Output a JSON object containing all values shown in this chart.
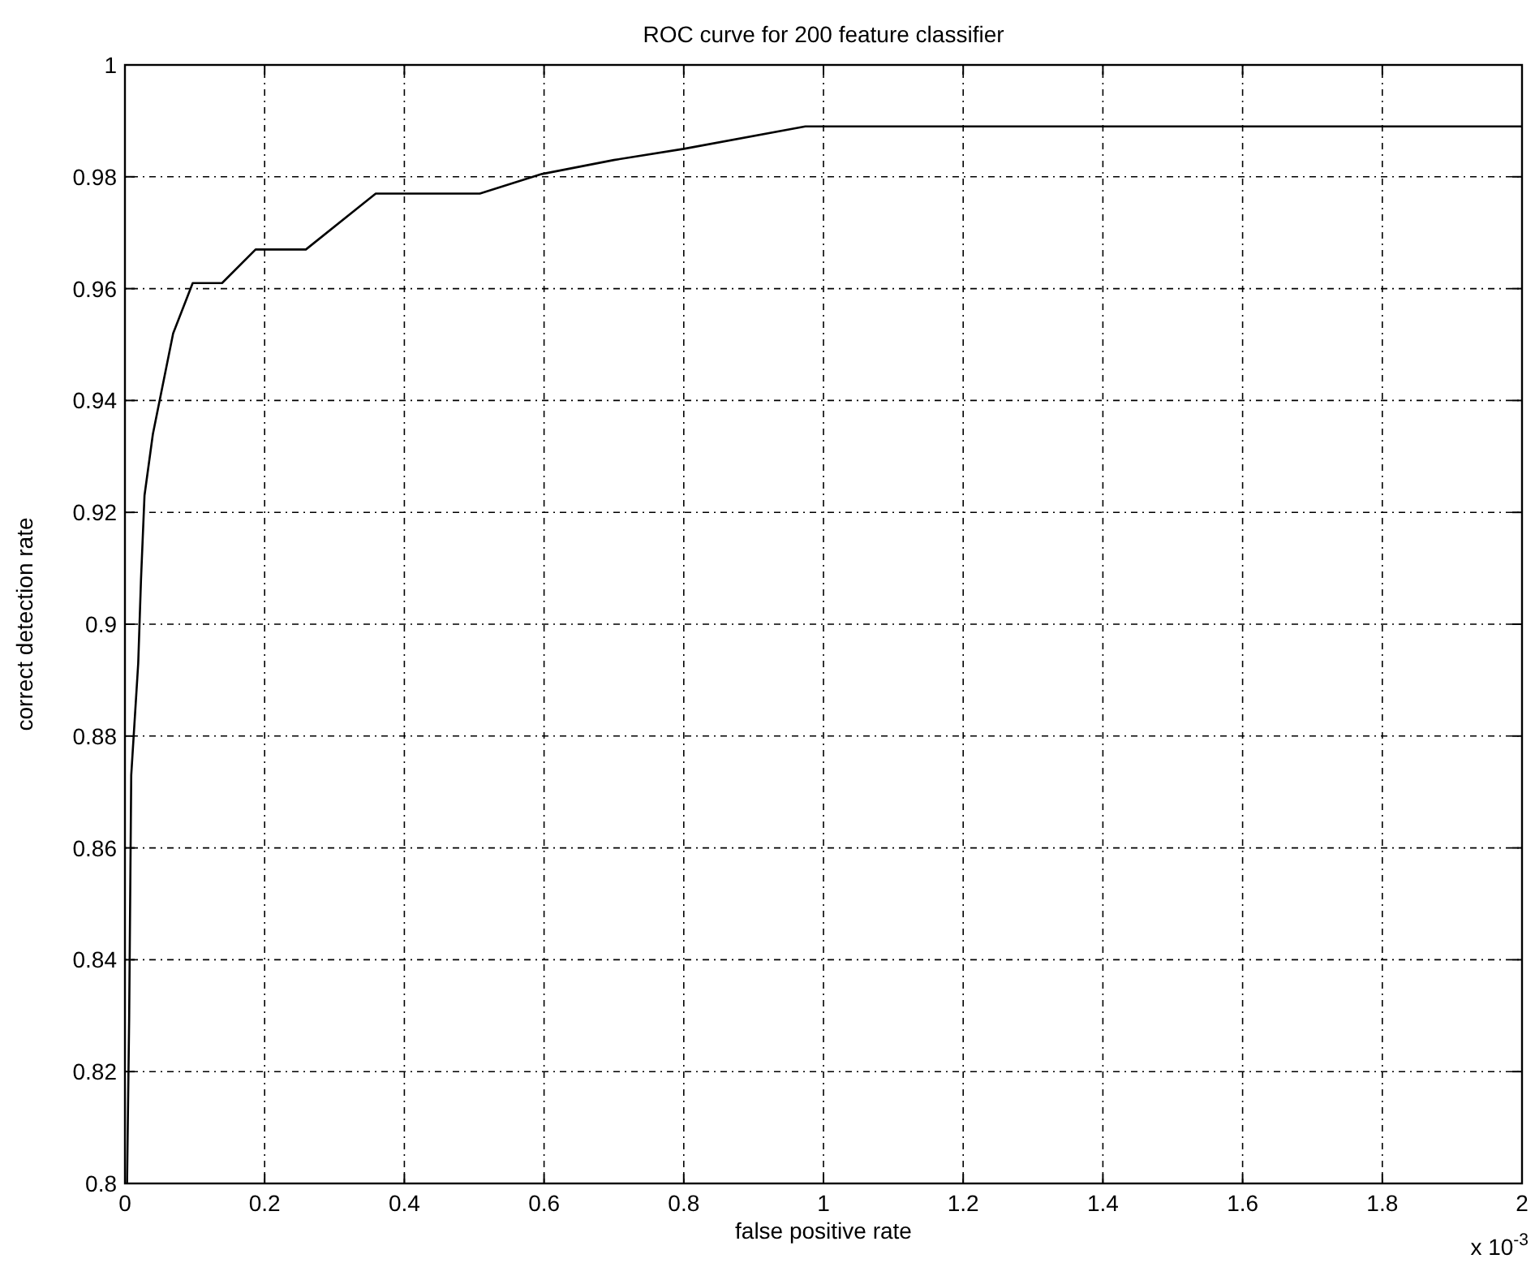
{
  "chart_data": {
    "type": "line",
    "title": "ROC curve for 200 feature classifier",
    "xlabel": "false positive rate",
    "ylabel": "correct detection rate",
    "annotations": [
      "x 10$^{-3}$"
    ],
    "x": [
      0.003,
      0.006,
      0.009,
      0.019,
      0.023,
      0.028,
      0.04,
      0.069,
      0.097,
      0.139,
      0.187,
      0.259,
      0.359,
      0.508,
      0.597,
      0.7,
      0.8,
      0.974,
      2
    ],
    "series": [
      {
        "color": "#000000",
        "values": [
          0.8,
          0.829,
          0.873,
          0.893,
          0.908,
          0.923,
          0.934,
          0.952,
          0.961,
          0.961,
          0.967,
          0.967,
          0.977,
          0.977,
          0.9805,
          0.983,
          0.985,
          0.989,
          0.989
        ]
      }
    ],
    "xlim": [
      0,
      2
    ],
    "ylim": [
      0.8,
      1
    ],
    "xticks": [
      0,
      0.2,
      0.4,
      0.6,
      0.8,
      1,
      1.2,
      1.4,
      1.6,
      1.8,
      2
    ],
    "yticks": [
      0.8,
      0.82,
      0.84,
      0.86,
      0.88,
      0.9,
      0.92,
      0.94,
      0.96,
      0.98,
      1
    ],
    "grid": true,
    "line_style": "solid",
    "marker": "none"
  }
}
